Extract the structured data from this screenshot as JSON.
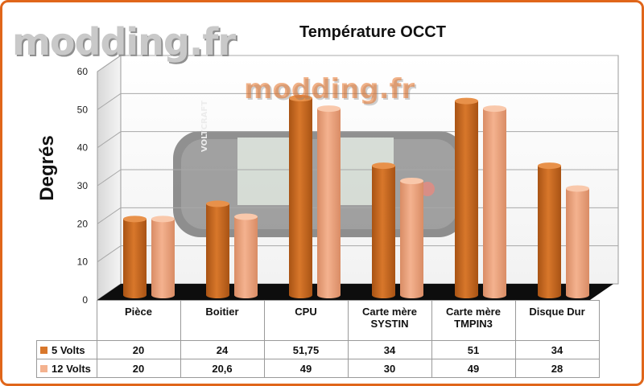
{
  "watermark": {
    "logo": "modding.fr",
    "center": "modding.fr"
  },
  "chart_data": {
    "type": "bar",
    "title": "Température OCCT",
    "ylabel": "Degrés",
    "xlabel": "",
    "ylim": [
      0,
      60
    ],
    "yticks": [
      0,
      10,
      20,
      30,
      40,
      50,
      60
    ],
    "grid": true,
    "categories": [
      "Pièce",
      "Boitier",
      "CPU",
      "Carte mère\nSYSTIN",
      "Carte mère\nTMPIN3",
      "Disque Dur"
    ],
    "series": [
      {
        "name": "5 Volts",
        "values": [
          20,
          24,
          51.75,
          34,
          51,
          34
        ],
        "labels": [
          "20",
          "24",
          "51,75",
          "34",
          "51",
          "34"
        ],
        "color": "#d8772b"
      },
      {
        "name": "12 Volts",
        "values": [
          20,
          20.6,
          49,
          30,
          49,
          28
        ],
        "labels": [
          "20",
          "20,6",
          "49",
          "30",
          "49",
          "28"
        ],
        "color": "#f4b28f"
      }
    ]
  }
}
